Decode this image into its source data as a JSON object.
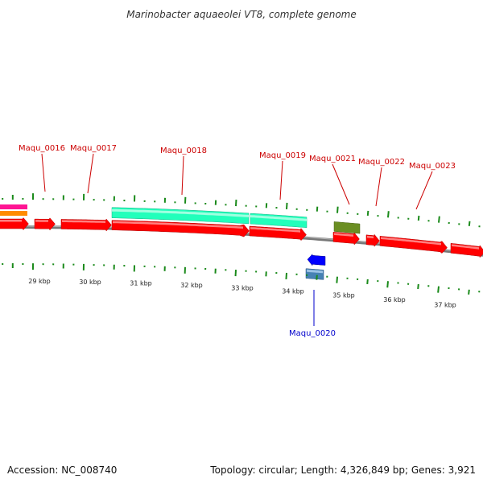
{
  "title": "Marinobacter aquaeolei VT8, complete genome",
  "footer": {
    "accession": "Accession: NC_008740",
    "summary": "Topology: circular; Length: 4,326,849 bp; Genes: 3,921"
  },
  "colors": {
    "background": "#ffffff",
    "backbone": "#777777",
    "tick": "#1a8a1a",
    "forward_gene": "#ff0000",
    "reverse_gene": "#0000ff",
    "forward_label": "#cc0000",
    "reverse_label": "#0000cc",
    "rna_feature": "#22ffbb",
    "feature_olive": "#6b8e23",
    "feature_slate": "#4682b4",
    "feature_pink": "#ff1493",
    "feature_orange": "#ff8c00"
  },
  "chart_data": {
    "type": "genome-map",
    "topology": "circular",
    "length_bp": 4326849,
    "genes": 3921,
    "ticks_kbp": [
      "29 kbp",
      "30 kbp",
      "31 kbp",
      "32 kbp",
      "33 kbp",
      "34 kbp",
      "35 kbp",
      "36 kbp",
      "37 kbp"
    ],
    "labeled_genes": [
      {
        "name": "Maqu_0016",
        "strand": "+"
      },
      {
        "name": "Maqu_0017",
        "strand": "+"
      },
      {
        "name": "Maqu_0018",
        "strand": "+"
      },
      {
        "name": "Maqu_0019",
        "strand": "+"
      },
      {
        "name": "Maqu_0020",
        "strand": "-"
      },
      {
        "name": "Maqu_0021",
        "strand": "+"
      },
      {
        "name": "Maqu_0022",
        "strand": "+"
      },
      {
        "name": "Maqu_0023",
        "strand": "+"
      }
    ]
  }
}
